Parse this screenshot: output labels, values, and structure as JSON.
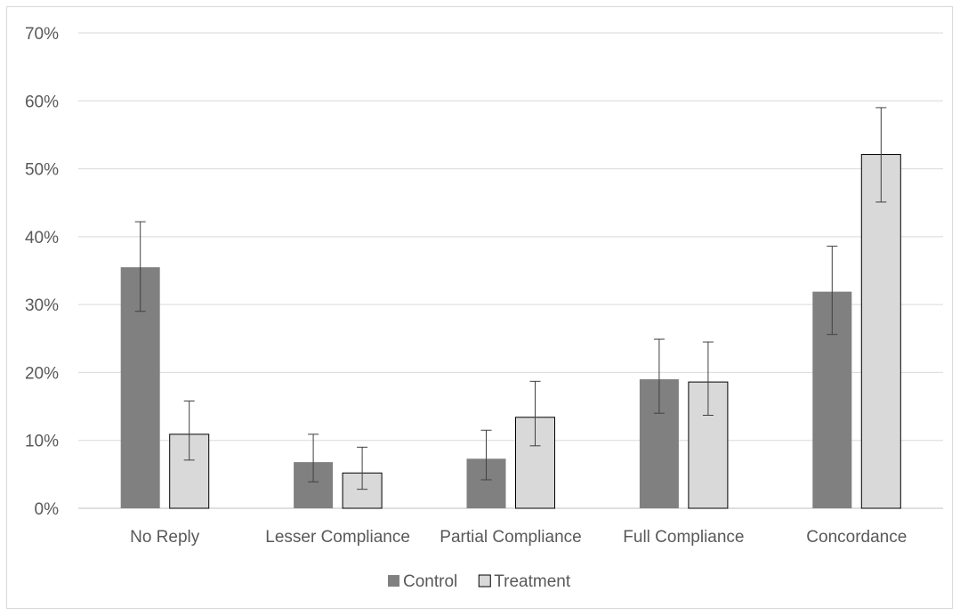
{
  "chart_data": {
    "type": "bar",
    "categories": [
      "No Reply",
      "Lesser Compliance",
      "Partial Compliance",
      "Full Compliance",
      "Concordance"
    ],
    "series": [
      {
        "name": "Control",
        "color": "#808080",
        "values": [
          0.355,
          0.068,
          0.073,
          0.19,
          0.319
        ],
        "error_low": [
          0.29,
          0.039,
          0.042,
          0.14,
          0.256
        ],
        "error_high": [
          0.422,
          0.109,
          0.115,
          0.249,
          0.386
        ]
      },
      {
        "name": "Treatment",
        "color": "#d9d9d9",
        "values": [
          0.109,
          0.052,
          0.134,
          0.186,
          0.521
        ],
        "error_low": [
          0.071,
          0.028,
          0.092,
          0.137,
          0.451
        ],
        "error_high": [
          0.158,
          0.09,
          0.187,
          0.245,
          0.59
        ]
      }
    ],
    "ylim": [
      0,
      0.7
    ],
    "yticks": [
      0,
      0.1,
      0.2,
      0.3,
      0.4,
      0.5,
      0.6,
      0.7
    ],
    "ytick_labels": [
      "0%",
      "10%",
      "20%",
      "30%",
      "40%",
      "50%",
      "60%",
      "70%"
    ],
    "grid": true,
    "legend_position": "bottom",
    "title": "",
    "xlabel": "",
    "ylabel": ""
  }
}
